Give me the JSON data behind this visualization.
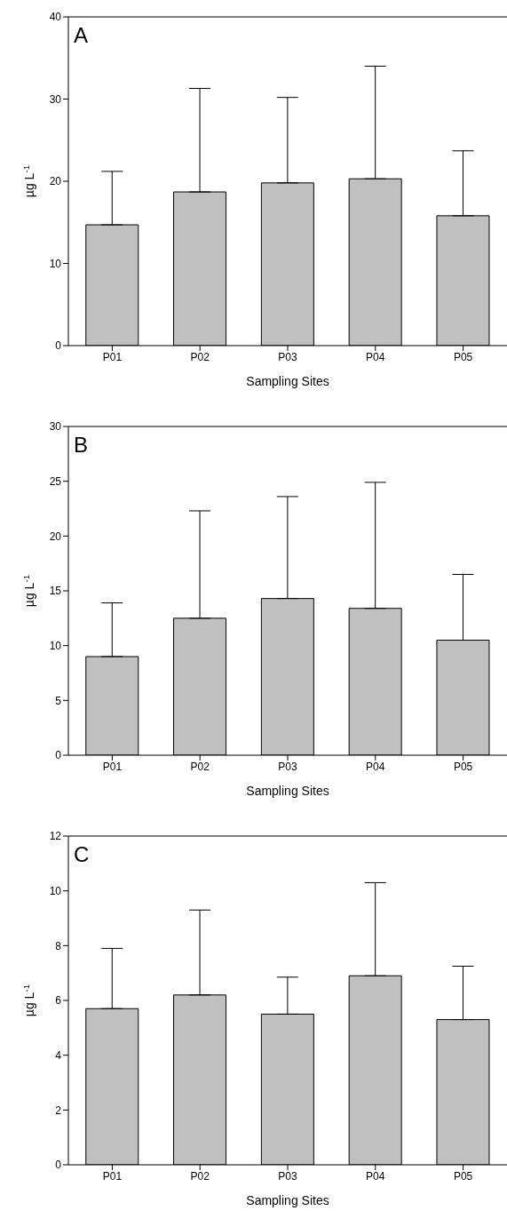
{
  "chart_data": [
    {
      "type": "bar",
      "title": "A",
      "xlabel": "Sampling Sites",
      "ylabel": "µg L$^{-1}$",
      "categories": [
        "P01",
        "P02",
        "P03",
        "P04",
        "P05"
      ],
      "values": [
        14.7,
        18.7,
        19.8,
        20.3,
        15.8
      ],
      "errors": [
        [
          14.7,
          21.2
        ],
        [
          18.7,
          31.3
        ],
        [
          19.8,
          30.2
        ],
        [
          20.3,
          34.0
        ],
        [
          15.8,
          23.7
        ]
      ],
      "color": "#c0c0c0",
      "ylim": [
        0,
        40
      ],
      "yticks": [
        0,
        10,
        20,
        30,
        40
      ],
      "grid": false
    },
    {
      "type": "bar",
      "title": "B",
      "xlabel": "Sampling Sites",
      "ylabel": "µg L$^{-1}$",
      "categories": [
        "P01",
        "P02",
        "P03",
        "P04",
        "P05"
      ],
      "values": [
        9.0,
        12.5,
        14.3,
        13.4,
        10.5
      ],
      "errors": [
        [
          9.0,
          13.9
        ],
        [
          12.5,
          22.3
        ],
        [
          14.3,
          23.6
        ],
        [
          13.4,
          24.9
        ],
        [
          10.5,
          16.5
        ]
      ],
      "color": "#c0c0c0",
      "ylim": [
        0,
        30
      ],
      "yticks": [
        0,
        5,
        10,
        15,
        20,
        25,
        30
      ],
      "grid": false
    },
    {
      "type": "bar",
      "title": "C",
      "xlabel": "Sampling Sites",
      "ylabel": "µg L$^{-1}$",
      "categories": [
        "P01",
        "P02",
        "P03",
        "P04",
        "P05"
      ],
      "values": [
        5.7,
        6.2,
        5.5,
        6.9,
        5.3
      ],
      "errors": [
        [
          5.7,
          7.9
        ],
        [
          6.2,
          9.3
        ],
        [
          5.5,
          6.85
        ],
        [
          6.9,
          10.3
        ],
        [
          5.3,
          7.25
        ]
      ],
      "color": "#c0c0c0",
      "ylim": [
        0,
        12
      ],
      "yticks": [
        0,
        2,
        4,
        6,
        8,
        10,
        12
      ],
      "grid": false
    }
  ]
}
